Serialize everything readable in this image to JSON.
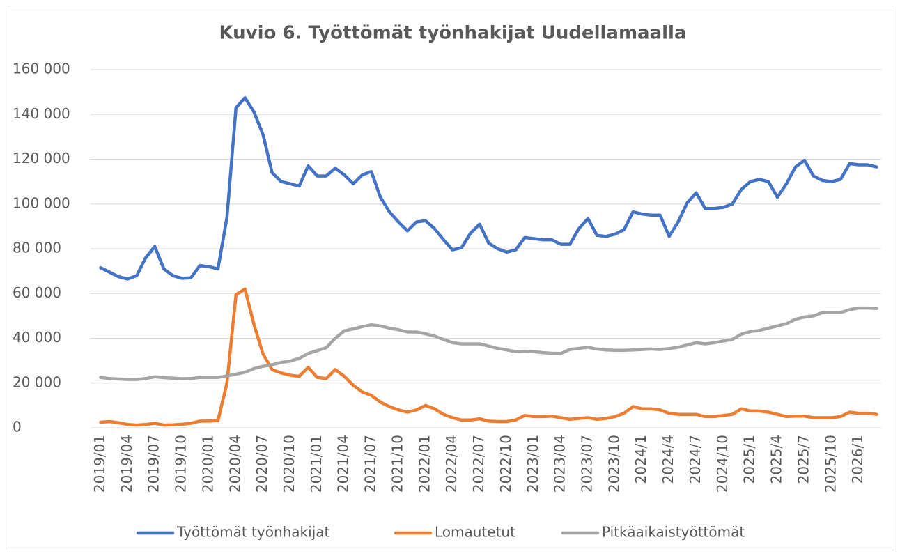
{
  "chart_data": {
    "type": "line",
    "title": "Kuvio 6. Työttömät työnhakijat Uudellamaalla",
    "categories": [
      "2019/01",
      null,
      null,
      "2019/04",
      null,
      null,
      "2019/07",
      null,
      null,
      "2019/10",
      null,
      null,
      "2020/01",
      null,
      null,
      "2020/04",
      null,
      null,
      "2020/07",
      null,
      null,
      "2020/10",
      null,
      null,
      "2021/01",
      null,
      null,
      "2021/04",
      null,
      null,
      "2021/07",
      null,
      null,
      "2021/10",
      null,
      null,
      "2022/01",
      null,
      null,
      "2022/04",
      null,
      null,
      "2022/07",
      null,
      null,
      "2022/10",
      null,
      null,
      "2023/01",
      null,
      null,
      "2023/04",
      null,
      null,
      "2023/07",
      null,
      null,
      "2023/10",
      null,
      null,
      "2024/1",
      null,
      null,
      "2024/4",
      null,
      null,
      "2024/7",
      null,
      null,
      "2024/10",
      null,
      null,
      "2025/1",
      null,
      null,
      "2025/4",
      null,
      null,
      "2025/7",
      null,
      null,
      "2025/10",
      null,
      null,
      "2026/1",
      null,
      null
    ],
    "series": [
      {
        "name": "Työttömät työnhakijat",
        "color": "#4472c4",
        "values": [
          71500,
          69500,
          67500,
          66500,
          68000,
          76000,
          81000,
          71000,
          68000,
          66800,
          67000,
          72500,
          72000,
          71000,
          94000,
          143000,
          147500,
          141000,
          131000,
          114000,
          110000,
          109000,
          108000,
          117000,
          112500,
          112500,
          116000,
          113000,
          109000,
          113000,
          114500,
          103000,
          96500,
          92000,
          88000,
          92000,
          92500,
          89000,
          84000,
          79500,
          80500,
          87000,
          91000,
          82500,
          80000,
          78500,
          79500,
          85000,
          84500,
          84000,
          84000,
          82000,
          82000,
          89000,
          93500,
          86000,
          85500,
          86500,
          88500,
          96500,
          95500,
          95000,
          95000,
          85500,
          92000,
          100500,
          105000,
          98000,
          98000,
          98500,
          100000,
          106500,
          110000,
          111000,
          110000,
          103000,
          109000,
          116500,
          119500,
          112500,
          110500,
          110000,
          111000,
          118000,
          117500,
          117500,
          116500
        ]
      },
      {
        "name": "Lomautetut",
        "color": "#ed7d31",
        "values": [
          2500,
          2800,
          2200,
          1500,
          1200,
          1500,
          2000,
          1200,
          1300,
          1600,
          2000,
          3000,
          3000,
          3200,
          20000,
          59500,
          62000,
          46000,
          33000,
          26000,
          24500,
          23500,
          23000,
          27000,
          22500,
          22000,
          26000,
          23000,
          19000,
          16000,
          14500,
          11500,
          9500,
          8000,
          7000,
          8000,
          10000,
          8500,
          6000,
          4500,
          3500,
          3500,
          4000,
          3000,
          2800,
          2800,
          3500,
          5500,
          5000,
          5000,
          5200,
          4500,
          3800,
          4200,
          4500,
          3800,
          4200,
          5000,
          6500,
          9500,
          8500,
          8500,
          8000,
          6500,
          6000,
          6000,
          6000,
          5000,
          5000,
          5500,
          6000,
          8500,
          7500,
          7500,
          7000,
          6000,
          5000,
          5200,
          5200,
          4500,
          4500,
          4500,
          5000,
          7000,
          6500,
          6500,
          6000
        ]
      },
      {
        "name": "Pitkäaikaistyöttömät",
        "color": "#a5a5a5",
        "values": [
          22500,
          22000,
          21800,
          21600,
          21600,
          22000,
          22800,
          22400,
          22200,
          21900,
          22000,
          22500,
          22500,
          22500,
          23200,
          24000,
          24800,
          26500,
          27500,
          28200,
          29200,
          29800,
          31000,
          33200,
          34500,
          35800,
          40000,
          43300,
          44200,
          45200,
          46000,
          45500,
          44500,
          43800,
          42800,
          42800,
          42000,
          41000,
          39500,
          38000,
          37500,
          37500,
          37500,
          36500,
          35500,
          34800,
          34000,
          34200,
          34000,
          33600,
          33300,
          33200,
          35000,
          35500,
          36000,
          35200,
          34800,
          34600,
          34600,
          34800,
          35000,
          35200,
          35000,
          35400,
          36000,
          37000,
          38000,
          37500,
          38000,
          38800,
          39500,
          41800,
          43000,
          43500,
          44500,
          45500,
          46500,
          48500,
          49500,
          50000,
          51500,
          51500,
          51500,
          52800,
          53500,
          53500,
          53300
        ]
      }
    ],
    "ylim": [
      0,
      160000
    ],
    "yticks": [
      0,
      {
        "value": 20000,
        "label": "20 000"
      },
      {
        "value": 40000,
        "label": "40 000"
      },
      {
        "value": 60000,
        "label": "60 000"
      },
      {
        "value": 80000,
        "label": "80 000"
      },
      {
        "value": 100000,
        "label": "100 000"
      },
      {
        "value": 120000,
        "label": "120 000"
      },
      {
        "value": 140000,
        "label": "140 000"
      },
      {
        "value": 160000,
        "label": "160 000"
      }
    ],
    "grid": true,
    "legend": "bottom"
  }
}
